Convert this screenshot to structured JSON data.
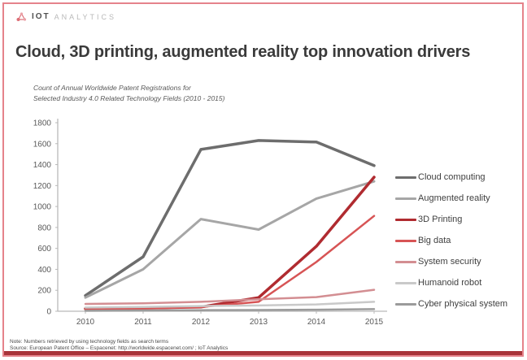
{
  "logo": {
    "brand_bold": "IOT",
    "brand_light": "ANALYTICS"
  },
  "title": "Cloud, 3D printing, augmented reality top innovation drivers",
  "subtitle_line1": "Count of Annual Worldwide Patent Registrations for",
  "subtitle_line2": "Selected Industry 4.0 Related Technology Fields (2010 - 2015)",
  "footnote": {
    "note": "Note: Numbers retrieved by using technology fields as search terms",
    "source": "Source: European Patent Office – Espacenet: http://worldwide.espacenet.com/ ; IoT Analytics"
  },
  "colors": {
    "border": "#e5838b",
    "accent_bar": "#a8343a",
    "axis": "#b9b9b9",
    "logo_icon": "#dd6e76"
  },
  "chart_data": {
    "type": "line",
    "title": "Count of Annual Worldwide Patent Registrations for Selected Industry 4.0 Related Technology Fields (2010 - 2015)",
    "x": [
      2010,
      2011,
      2012,
      2013,
      2014,
      2015
    ],
    "ylim": [
      0,
      1800
    ],
    "yticks": [
      0,
      200,
      400,
      600,
      800,
      1000,
      1200,
      1400,
      1600,
      1800
    ],
    "grid": false,
    "legend_position": "right",
    "series": [
      {
        "name": "Cloud computing",
        "color": "#6d6d6d",
        "width": 3.5,
        "values": [
          150,
          520,
          1545,
          1630,
          1615,
          1390
        ]
      },
      {
        "name": "Augmented reality",
        "color": "#a6a6a6",
        "width": 3,
        "values": [
          130,
          400,
          880,
          780,
          1075,
          1240
        ]
      },
      {
        "name": "3D Printing",
        "color": "#b02b30",
        "width": 3.5,
        "values": [
          25,
          30,
          40,
          130,
          620,
          1280
        ]
      },
      {
        "name": "Big data",
        "color": "#d75455",
        "width": 2.5,
        "values": [
          15,
          25,
          40,
          90,
          470,
          910
        ]
      },
      {
        "name": "System security",
        "color": "#d38e92",
        "width": 2.5,
        "values": [
          70,
          75,
          90,
          115,
          135,
          205
        ]
      },
      {
        "name": "Humanoid robot",
        "color": "#c9c9c9",
        "width": 2.5,
        "values": [
          35,
          40,
          50,
          55,
          65,
          90
        ]
      },
      {
        "name": "Cyber physical system",
        "color": "#9b9b9b",
        "width": 2.5,
        "values": [
          5,
          8,
          10,
          12,
          15,
          20
        ]
      }
    ]
  }
}
